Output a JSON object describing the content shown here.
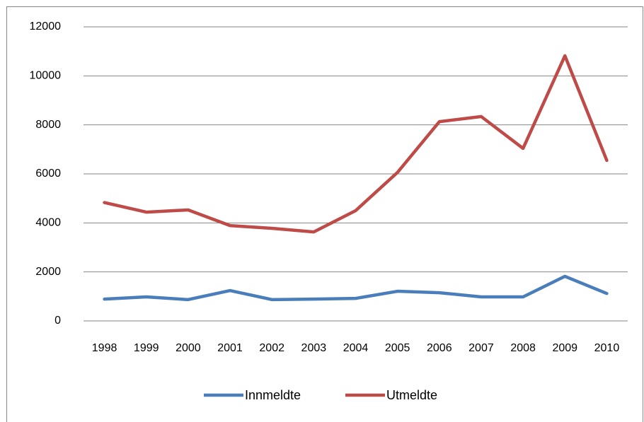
{
  "chart_data": {
    "type": "line",
    "categories": [
      "1998",
      "1999",
      "2000",
      "2001",
      "2002",
      "2003",
      "2004",
      "2005",
      "2006",
      "2007",
      "2008",
      "2009",
      "2010"
    ],
    "series": [
      {
        "name": "Innmeldte",
        "color": "#4a7ebb",
        "values": [
          890,
          980,
          870,
          1240,
          870,
          890,
          920,
          1210,
          1150,
          980,
          980,
          1820,
          1120
        ]
      },
      {
        "name": "Utmeldte",
        "color": "#be4b48",
        "values": [
          4830,
          4440,
          4530,
          3890,
          3780,
          3630,
          4500,
          6060,
          8130,
          8340,
          7040,
          10820,
          6550
        ]
      }
    ],
    "ylim": [
      0,
      12000
    ],
    "yticks": [
      0,
      2000,
      4000,
      6000,
      8000,
      10000,
      12000
    ],
    "grid": true,
    "legend": "bottom"
  }
}
